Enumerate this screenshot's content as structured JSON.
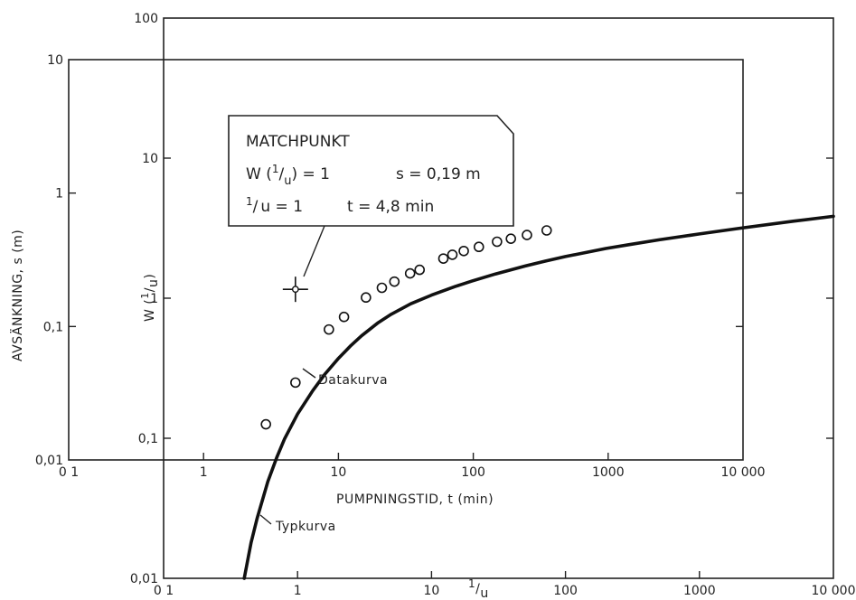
{
  "chart_data": [
    {
      "type": "line",
      "name": "type_curve_axes",
      "xscale": "log",
      "yscale": "log",
      "xlim": [
        0.1,
        10000
      ],
      "ylim": [
        0.01,
        100
      ],
      "xlabel_main": "1",
      "xlabel_sub": "u",
      "ylabel_w": "W (",
      "ylabel_num": "1",
      "ylabel_den": "u",
      "ylabel_close": ")",
      "x_ticks": [
        {
          "v": 0.1,
          "label": "0 1"
        },
        {
          "v": 1,
          "label": "1"
        },
        {
          "v": 10,
          "label": "10"
        },
        {
          "v": 100,
          "label": "100"
        },
        {
          "v": 1000,
          "label": "1000"
        },
        {
          "v": 10000,
          "label": "10 000"
        }
      ],
      "y_ticks": [
        {
          "v": 0.01,
          "label": "0,01"
        },
        {
          "v": 0.1,
          "label": "0,1"
        },
        {
          "v": 1,
          "label": "1"
        },
        {
          "v": 10,
          "label": "10"
        },
        {
          "v": 100,
          "label": "100"
        }
      ],
      "curve_label": "Typkurva",
      "type_curve": {
        "x": [
          0.4,
          0.45,
          0.5,
          0.6,
          0.7,
          0.8,
          1,
          1.3,
          1.6,
          2,
          2.5,
          3,
          4,
          5,
          7,
          10,
          15,
          20,
          30,
          50,
          70,
          100,
          200,
          300,
          500,
          1000,
          2000,
          5000,
          10000
        ],
        "y": [
          0.01,
          0.018,
          0.027,
          0.049,
          0.073,
          0.099,
          0.149,
          0.219,
          0.287,
          0.368,
          0.459,
          0.538,
          0.669,
          0.768,
          0.912,
          1.052,
          1.211,
          1.325,
          1.488,
          1.698,
          1.836,
          1.982,
          2.263,
          2.413,
          2.612,
          2.877,
          3.156,
          3.546,
          3.84
        ]
      }
    },
    {
      "type": "scatter",
      "name": "data_axes",
      "xscale": "log",
      "yscale": "log",
      "xlim": [
        0.1,
        10000
      ],
      "ylim": [
        0.01,
        10
      ],
      "xlabel": "PUMPNINGSTID, t (min)",
      "ylabel": "AVSÄNKNING, s (m)",
      "x_ticks": [
        {
          "v": 0.1,
          "label": "0 1"
        },
        {
          "v": 1,
          "label": "1"
        },
        {
          "v": 10,
          "label": "10"
        },
        {
          "v": 100,
          "label": "100"
        },
        {
          "v": 1000,
          "label": "1000"
        },
        {
          "v": 10000,
          "label": "10 000"
        }
      ],
      "y_ticks": [
        {
          "v": 0.01,
          "label": "0,01"
        },
        {
          "v": 0.1,
          "label": "0,1"
        },
        {
          "v": 1,
          "label": "1"
        },
        {
          "v": 10,
          "label": "10"
        }
      ],
      "data_label": "Datakurva",
      "data_points": {
        "x": [
          2.9,
          4.8,
          8.5,
          11,
          16,
          21,
          26,
          34,
          40,
          60,
          70,
          85,
          110,
          150,
          190,
          250,
          350
        ],
        "y": [
          0.0185,
          0.038,
          0.095,
          0.118,
          0.165,
          0.195,
          0.217,
          0.25,
          0.266,
          0.323,
          0.345,
          0.368,
          0.395,
          0.432,
          0.455,
          0.485,
          0.525
        ]
      },
      "match_point": {
        "x": 4.8,
        "y": 0.19
      }
    }
  ],
  "matchpoint_box": {
    "title": "MATCHPUNKT",
    "line1_w": "W (",
    "line1_num": "1",
    "line1_den": "u",
    "line1_eq": ") = 1",
    "line1_s": "s = 0,19 m",
    "line2_num": "1",
    "line2_den": "u",
    "line2_eq": " = 1",
    "line2_t": "t = 4,8 min"
  }
}
